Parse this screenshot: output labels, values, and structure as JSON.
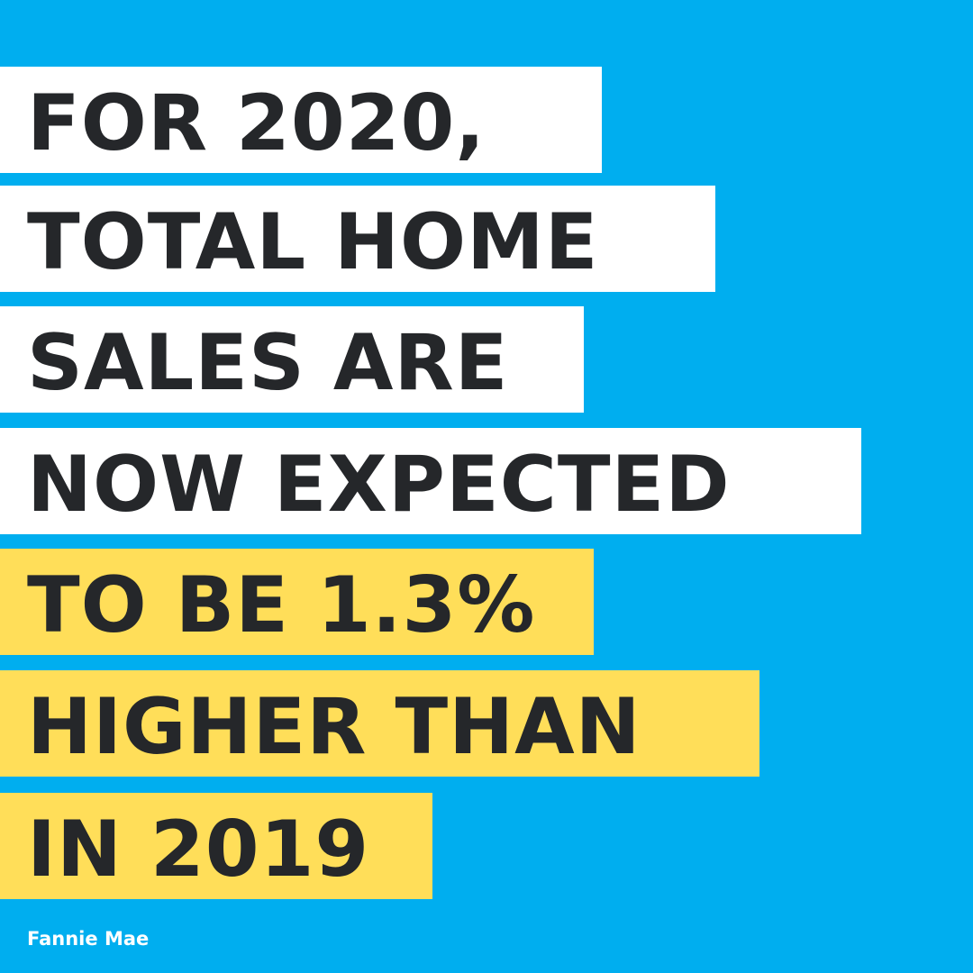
{
  "colors": {
    "background": "#00aeef",
    "highlight_white": "#ffffff",
    "highlight_yellow": "#ffde59",
    "text": "#25272a",
    "source_text": "#ffffff"
  },
  "headline": {
    "lines": [
      {
        "text": "FOR 2020,",
        "highlight": "white"
      },
      {
        "text": "TOTAL HOME",
        "highlight": "white"
      },
      {
        "text": "SALES ARE",
        "highlight": "white"
      },
      {
        "text": "NOW EXPECTED",
        "highlight": "white"
      },
      {
        "text": "TO BE 1.3%",
        "highlight": "yellow"
      },
      {
        "text": "HIGHER THAN",
        "highlight": "yellow"
      },
      {
        "text": "IN 2019",
        "highlight": "yellow"
      }
    ]
  },
  "source": "Fannie Mae"
}
